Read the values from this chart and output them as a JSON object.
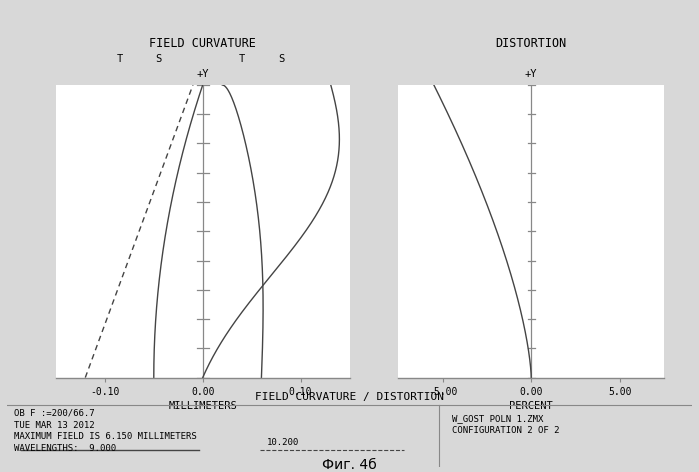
{
  "fc_title": "FIELD CURVATURE",
  "dist_title": "DISTORTION",
  "fc_xlabel": "MILLIMETERS",
  "dist_xlabel": "PERCENT",
  "fc_xlim": [
    -0.15,
    0.15
  ],
  "dist_xlim": [
    -7.5,
    7.5
  ],
  "fc_xticks": [
    -0.1,
    0.0,
    0.1
  ],
  "fc_xtick_labels": [
    "-0.10",
    "0.00",
    "0.10"
  ],
  "dist_xticks": [
    -5.0,
    0.0,
    5.0
  ],
  "dist_xtick_labels": [
    "-5.00",
    "0.00",
    "5.00"
  ],
  "ylim": [
    0.0,
    1.0
  ],
  "ytick_positions": [
    0.0,
    0.1,
    0.2,
    0.3,
    0.4,
    0.5,
    0.6,
    0.7,
    0.8,
    0.9,
    1.0
  ],
  "footer_title": "FIELD CURVATURE / DISTORTION",
  "footer_left_line1": "OB F :=200/66.7",
  "footer_left_line2": "TUE MAR 13 2012",
  "footer_left_line3": "MAXIMUM FIELD IS 6.150 MILLIMETERS",
  "footer_left_line4": "WAVELENGTHS:  9.000",
  "footer_wavelengths2": "10.200",
  "footer_right_line1": "W_GOST POLN 1.ZMX",
  "footer_right_line2": "CONFIGURATION 2 OF 2",
  "fig_caption": "Фиг. 4б",
  "bg_color": "#d8d8d8",
  "plot_bg": "#ffffff",
  "line_color": "#444444",
  "border_color": "#888888"
}
